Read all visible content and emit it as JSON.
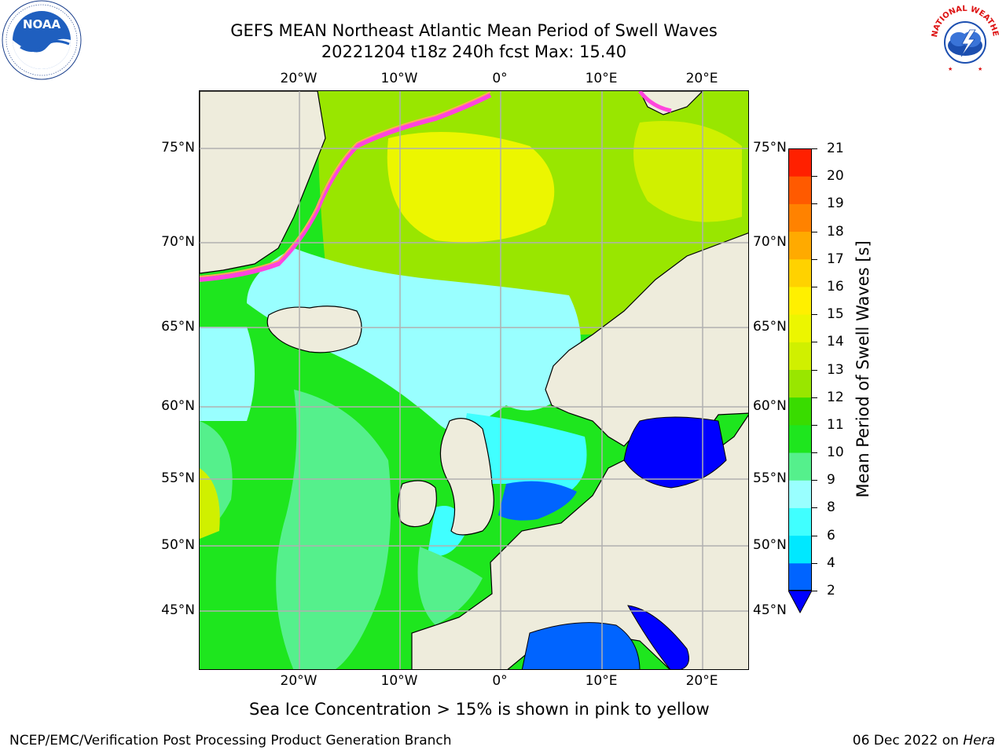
{
  "header": {
    "title_line1": "GEFS MEAN Northeast Atlantic Mean Period of Swell Waves",
    "title_line2": "20221204 t18z 240h fcst   Max: 15.40"
  },
  "map": {
    "lon_labels": [
      "20°W",
      "10°W",
      "0°",
      "10°E",
      "20°E"
    ],
    "lat_labels": [
      "75°N",
      "70°N",
      "65°N",
      "60°N",
      "55°N",
      "50°N",
      "45°N"
    ],
    "colors": {
      "land": "#eeecdc",
      "ice_pink": "#ff44dd",
      "ice_orange": "#ffaa55",
      "grid": "#b0b0b0",
      "coast": "#000000"
    }
  },
  "colorbar": {
    "label": "Mean Period of Swell Waves [s]",
    "ticks": [
      "2",
      "4",
      "6",
      "8",
      "9",
      "10",
      "11",
      "12",
      "13",
      "14",
      "15",
      "16",
      "17",
      "18",
      "19",
      "20",
      "21"
    ],
    "colors": [
      "#0064ff",
      "#00e8ff",
      "#40ffff",
      "#99ffff",
      "#55f08c",
      "#1ee61e",
      "#39dc00",
      "#99e600",
      "#d0f000",
      "#ecf600",
      "#fff000",
      "#ffd200",
      "#ffaa00",
      "#ff8200",
      "#ff5a00",
      "#ff2000"
    ],
    "under_color": "#0000ff"
  },
  "subtitle": "Sea Ice Concentration > 15% is shown in pink to yellow",
  "footer": {
    "left": "NCEP/EMC/Verification Post Processing Product Generation Branch",
    "right_date": "06 Dec 2022 on ",
    "right_host": "Hera"
  },
  "logos": {
    "noaa_text": "NOAA",
    "nws_text": "NATIONAL WEATHER SERVICE"
  }
}
